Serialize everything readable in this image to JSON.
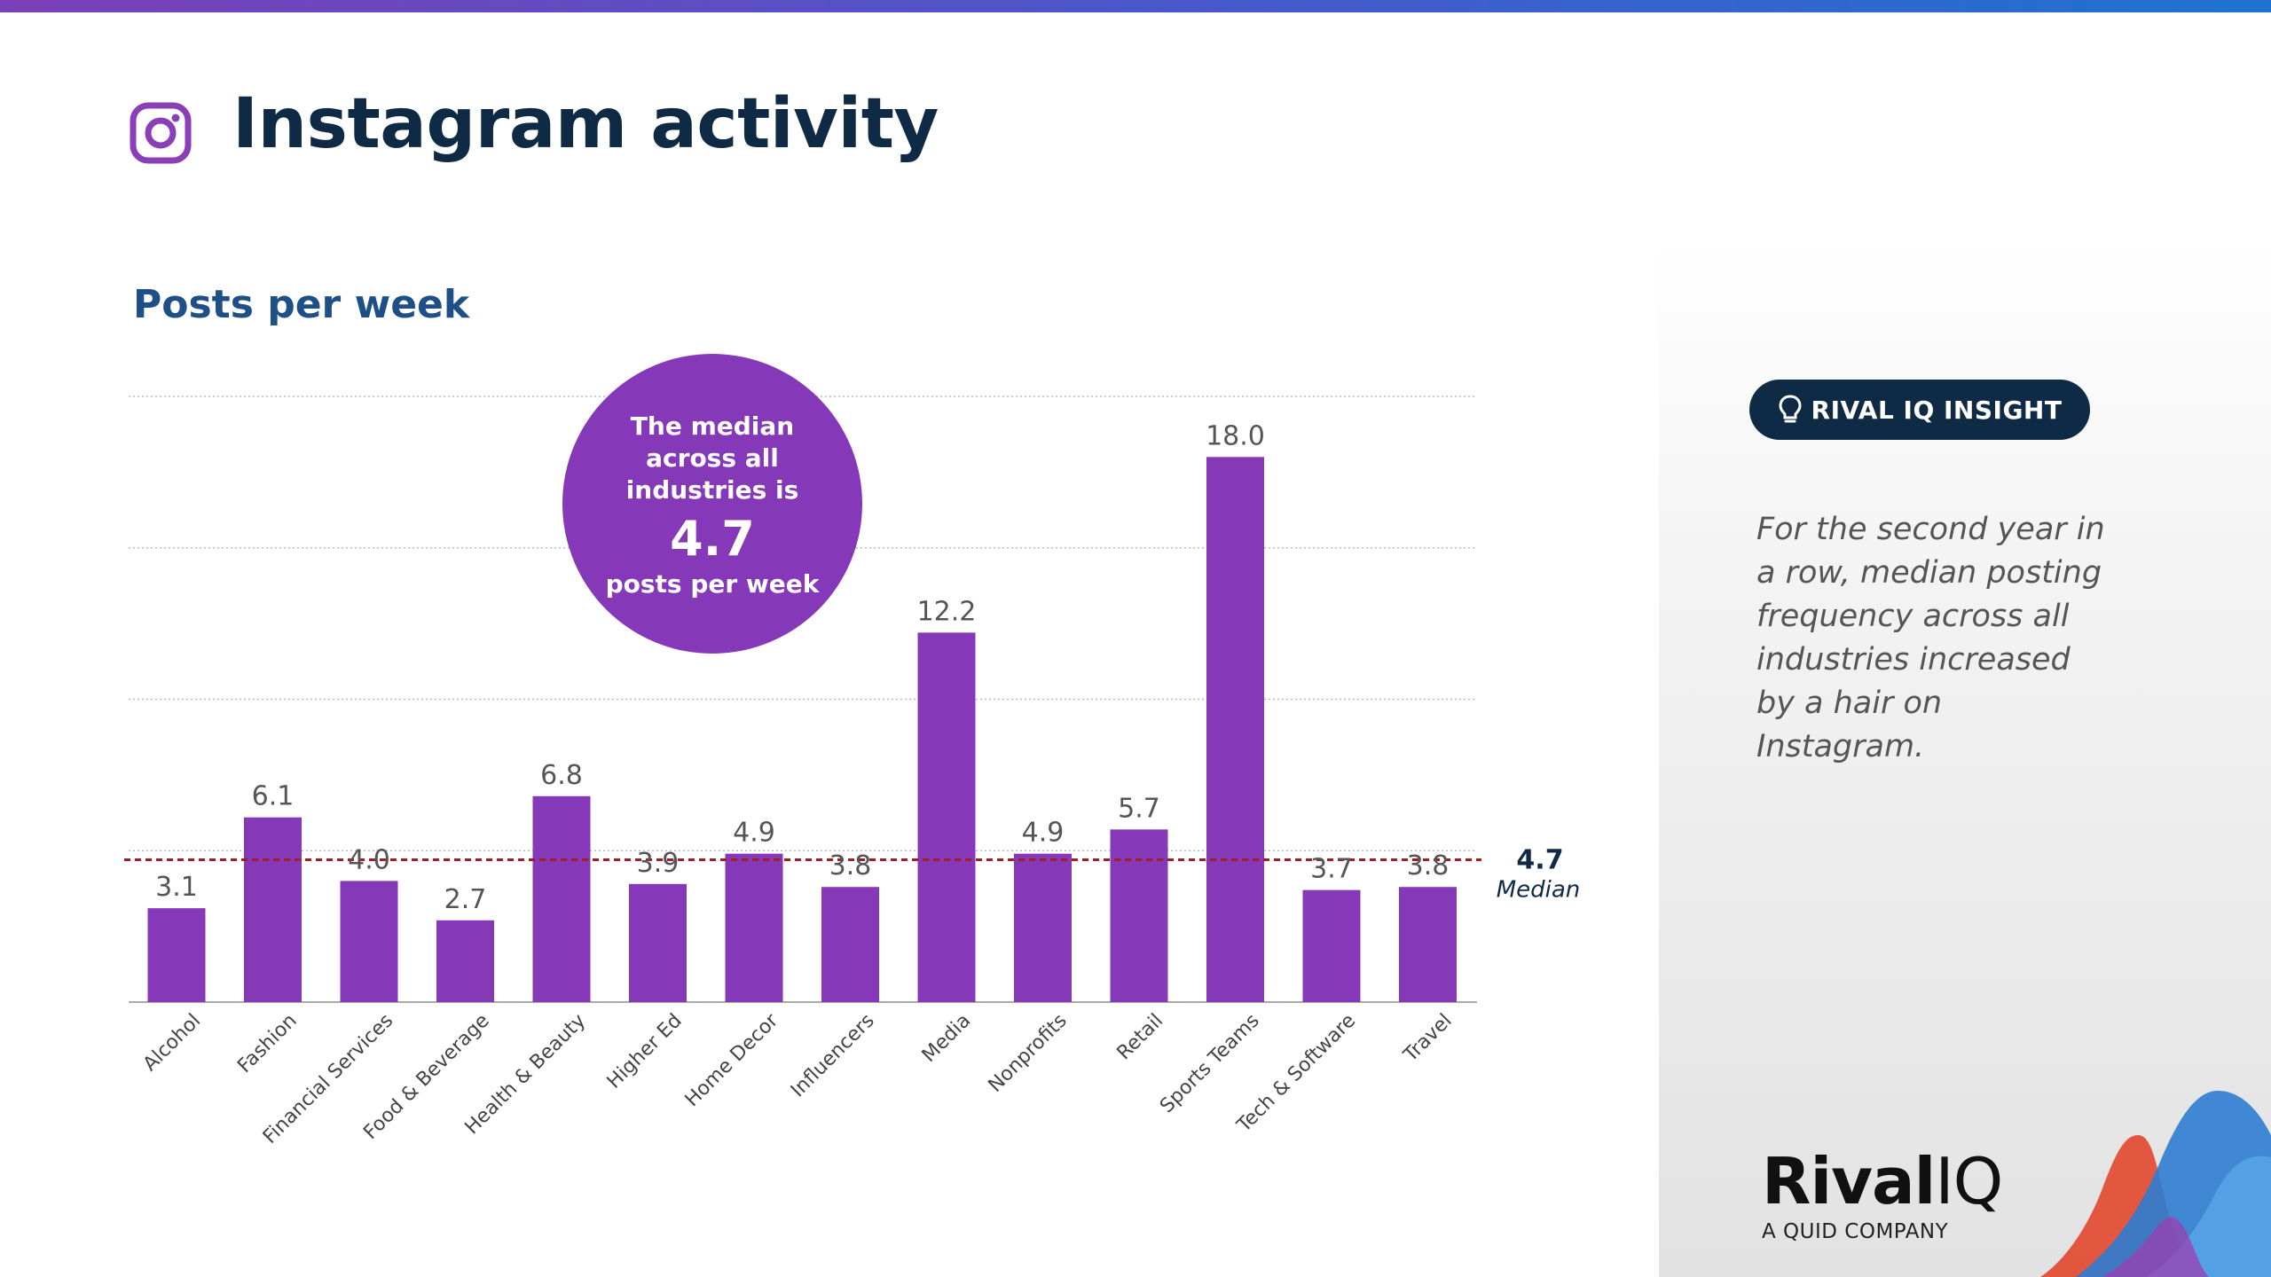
{
  "page_title": "Instagram activity",
  "chart_subtitle": "Posts per week",
  "callout": {
    "line1": "The median",
    "line2": "across all",
    "line3": "industries is",
    "value": "4.7",
    "unit": "posts per week"
  },
  "insight": {
    "badge": "RIVAL IQ INSIGHT",
    "text": "For the second year in a row, median posting frequency across all industries increased by a hair on Instagram."
  },
  "logo": {
    "main": "Rival",
    "iq": "IQ",
    "sub": "A QUID COMPANY"
  },
  "colors": {
    "bar": "#8538b8",
    "median_line": "#a31f1f",
    "title": "#0f2a44",
    "subtitle": "#1e4f86",
    "badge_bg": "#0f2a44"
  },
  "chart_data": {
    "type": "bar",
    "title": "Posts per week",
    "categories": [
      "Alcohol",
      "Fashion",
      "Financial Services",
      "Food & Beverage",
      "Health & Beauty",
      "Higher Ed",
      "Home Decor",
      "Influencers",
      "Media",
      "Nonprofits",
      "Retail",
      "Sports Teams",
      "Tech & Software",
      "Travel"
    ],
    "values": [
      3.1,
      6.1,
      4.0,
      2.7,
      6.8,
      3.9,
      4.9,
      3.8,
      12.2,
      4.9,
      5.7,
      18.0,
      3.7,
      3.8
    ],
    "value_labels": [
      "3.1",
      "6.1",
      "4.0",
      "2.7",
      "6.8",
      "3.9",
      "4.9",
      "3.8",
      "12.2",
      "4.9",
      "5.7",
      "18.0",
      "3.7",
      "3.8"
    ],
    "ylim": [
      0,
      20
    ],
    "gridlines": [
      5,
      10,
      15,
      20
    ],
    "grid": true,
    "xlabel": "",
    "ylabel": "",
    "median": {
      "value": 4.7,
      "value_label": "4.7",
      "label": "Median"
    }
  }
}
